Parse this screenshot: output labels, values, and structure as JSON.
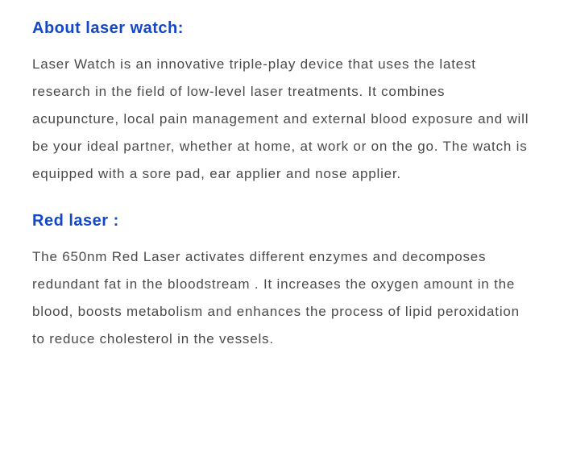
{
  "sections": [
    {
      "heading": "About laser watch:",
      "body": "Laser Watch is an innovative triple-play device that uses the latest research in the field of low-level laser treatments. It combines acupuncture, local pain management and external blood exposure and will be your ideal partner, whether at home, at work or on the go. The watch is equipped with a sore pad, ear applier and nose applier."
    },
    {
      "heading": "Red laser :",
      "body": "The 650nm Red Laser activates different enzymes and decomposes redundant fat in the bloodstream . It increases the oxygen amount in the blood, boosts metabolism and enhances the process of lipid peroxidation to reduce cholesterol in the vessels."
    }
  ],
  "styling": {
    "heading_color": "#1347c9",
    "body_color": "#4a4a4a",
    "background_color": "#ffffff",
    "heading_fontsize": 20,
    "body_fontsize": 17,
    "line_height": 2.0,
    "letter_spacing_body": 0.8,
    "letter_spacing_heading": 0.5,
    "font_family": "Arial, Helvetica, sans-serif"
  }
}
